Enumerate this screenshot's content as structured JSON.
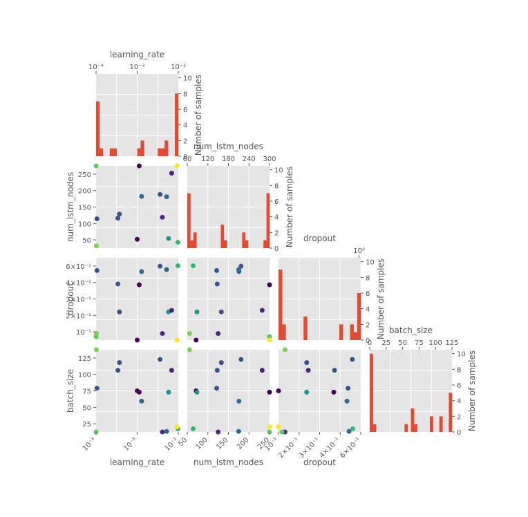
{
  "chart_data": {
    "type": "pairplot",
    "grid": true,
    "params": [
      {
        "name": "learning_rate",
        "scale": "log",
        "range": [
          0.0001,
          0.01
        ]
      },
      {
        "name": "num_lstm_nodes",
        "scale": "linear",
        "range": [
          20,
          300
        ]
      },
      {
        "name": "dropout",
        "scale": "log",
        "range": [
          0.1,
          1.0
        ]
      },
      {
        "name": "batch_size",
        "scale": "linear",
        "range": [
          0,
          128
        ]
      }
    ],
    "hist_ylabel": "Number of samples",
    "hist_yticks": [
      "0",
      "2",
      "4",
      "6",
      "8",
      "10"
    ],
    "histograms": [
      {
        "param": "learning_rate",
        "counts": [
          7,
          1,
          0,
          0,
          1,
          1,
          0,
          0,
          0,
          0,
          0,
          0,
          1,
          2,
          0,
          0,
          0,
          0,
          1,
          1,
          2,
          0,
          0,
          8
        ]
      },
      {
        "param": "num_lstm_nodes",
        "counts": [
          7,
          1,
          2,
          0,
          0,
          0,
          0,
          0,
          0,
          0,
          0,
          3,
          1,
          0,
          0,
          0,
          0,
          0,
          2,
          1,
          0,
          0,
          0,
          0,
          0,
          1,
          7
        ]
      },
      {
        "param": "dropout",
        "counts": [
          9,
          2,
          0,
          0,
          0,
          0,
          0,
          3,
          0,
          0,
          0,
          0,
          0,
          0,
          0,
          0,
          0,
          2,
          0,
          0,
          2,
          1,
          6
        ]
      },
      {
        "param": "batch_size",
        "counts": [
          10,
          1,
          0,
          0,
          0,
          0,
          0,
          0,
          0,
          0,
          0,
          1,
          0,
          3,
          1,
          0,
          0,
          0,
          0,
          2,
          0,
          0,
          2,
          0,
          0,
          5
        ]
      }
    ],
    "top_axis_labels": [
      {
        "param": "learning_rate",
        "ticks": [
          "10⁻⁴",
          "10⁻³",
          "10⁻²"
        ]
      },
      {
        "param": "num_lstm_nodes",
        "ticks": [
          "60",
          "120",
          "180",
          "240",
          "300"
        ]
      },
      {
        "param": "dropout",
        "ticks": [
          "10⁰"
        ]
      },
      {
        "param": "batch_size",
        "ticks": [
          "0",
          "25",
          "50",
          "75",
          "100",
          "125"
        ]
      }
    ],
    "left_axis_ticks": {
      "num_lstm_nodes": [
        "50",
        "100",
        "150",
        "200",
        "250"
      ],
      "dropout": [
        "6×10⁻¹",
        "4×10⁻¹",
        "3×10⁻¹",
        "2×10⁻¹",
        "10⁻¹"
      ],
      "batch_size": [
        "125",
        "100",
        "75",
        "50",
        "25"
      ]
    },
    "bottom_axis_ticks": {
      "learning_rate": [
        "10⁻⁴",
        "10⁻³",
        "10⁻²"
      ],
      "num_lstm_nodes": [
        "50",
        "100",
        "150",
        "200",
        "250"
      ],
      "dropout": [
        "10⁻¹",
        "2×10⁻¹",
        "3×10⁻¹",
        "4×10⁻¹",
        "6×10⁻¹"
      ]
    },
    "samples": [
      {
        "learning_rate": 0.000105,
        "num_lstm_nodes": 120,
        "dropout": 0.7,
        "batch_size": 68,
        "color": "#3b528b"
      },
      {
        "learning_rate": 0.00034,
        "num_lstm_nodes": 122,
        "dropout": 0.48,
        "batch_size": 96,
        "color": "#3b528b"
      },
      {
        "learning_rate": 0.00037,
        "num_lstm_nodes": 136,
        "dropout": 0.22,
        "batch_size": 108,
        "color": "#3b528b"
      },
      {
        "learning_rate": 0.001,
        "num_lstm_nodes": 50,
        "dropout": 0.1,
        "batch_size": 64,
        "color": "#440154"
      },
      {
        "learning_rate": 0.00112,
        "num_lstm_nodes": 300,
        "dropout": 0.47,
        "batch_size": 62,
        "color": "#440154"
      },
      {
        "learning_rate": 0.00128,
        "num_lstm_nodes": 196,
        "dropout": 0.68,
        "batch_size": 48,
        "color": "#31688e"
      },
      {
        "learning_rate": 0.0036,
        "num_lstm_nodes": 203,
        "dropout": 0.79,
        "batch_size": 113,
        "color": "#3b528b"
      },
      {
        "learning_rate": 0.0041,
        "num_lstm_nodes": 125,
        "dropout": 0.12,
        "batch_size": 0,
        "color": "#482878"
      },
      {
        "learning_rate": 0.0052,
        "num_lstm_nodes": 195,
        "dropout": 0.72,
        "batch_size": 1,
        "color": "#31688e"
      },
      {
        "learning_rate": 0.0058,
        "num_lstm_nodes": 53,
        "dropout": 0.22,
        "batch_size": 62,
        "color": "#21918c"
      },
      {
        "learning_rate": 0.0069,
        "num_lstm_nodes": 275,
        "dropout": 0.23,
        "batch_size": 96,
        "color": "#482878"
      },
      {
        "learning_rate": 0.0098,
        "num_lstm_nodes": 40,
        "dropout": 0.8,
        "batch_size": 5,
        "color": "#35b779"
      },
      {
        "learning_rate": 0.0001,
        "num_lstm_nodes": 300,
        "dropout": 0.11,
        "batch_size": 0,
        "color": "#5ec962"
      },
      {
        "learning_rate": 0.000102,
        "num_lstm_nodes": 28,
        "dropout": 0.12,
        "batch_size": 128,
        "color": "#7ad151"
      },
      {
        "learning_rate": 0.0093,
        "num_lstm_nodes": 301,
        "dropout": 0.1,
        "batch_size": 8,
        "color": "#fde725"
      }
    ]
  }
}
